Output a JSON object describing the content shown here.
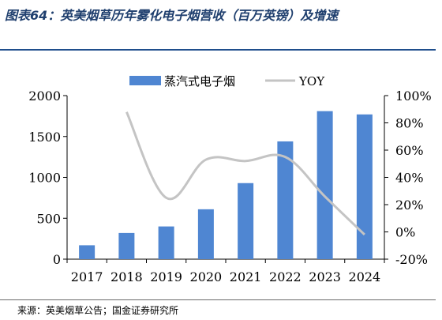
{
  "figure_title": "图表64：英美烟草历年雾化电子烟营收（百万英镑）及增速",
  "source": "来源：英美烟草公告；国金证券研究所",
  "colors": {
    "bar": "#4f86d2",
    "line": "#c4c4c4",
    "title": "#1f3f6e"
  },
  "chart_data": {
    "type": "bar+line",
    "categories": [
      "2017",
      "2018",
      "2019",
      "2020",
      "2021",
      "2022",
      "2023",
      "2024"
    ],
    "series": [
      {
        "name": "蒸汽式电子烟",
        "type": "bar",
        "axis": "left",
        "values": [
          170,
          320,
          400,
          610,
          930,
          1440,
          1810,
          1770
        ]
      },
      {
        "name": "YOY",
        "type": "line",
        "axis": "right",
        "values": [
          null,
          0.88,
          0.25,
          0.53,
          0.52,
          0.55,
          0.26,
          -0.02
        ]
      }
    ],
    "y_left": {
      "min": 0,
      "max": 2000,
      "ticks": [
        "0",
        "500",
        "1000",
        "1500",
        "2000"
      ]
    },
    "y_right": {
      "min": -0.2,
      "max": 1.0,
      "ticks": [
        "-20%",
        "0%",
        "20%",
        "40%",
        "60%",
        "80%",
        "100%"
      ]
    },
    "legend_position": "top-center",
    "grid": false
  }
}
